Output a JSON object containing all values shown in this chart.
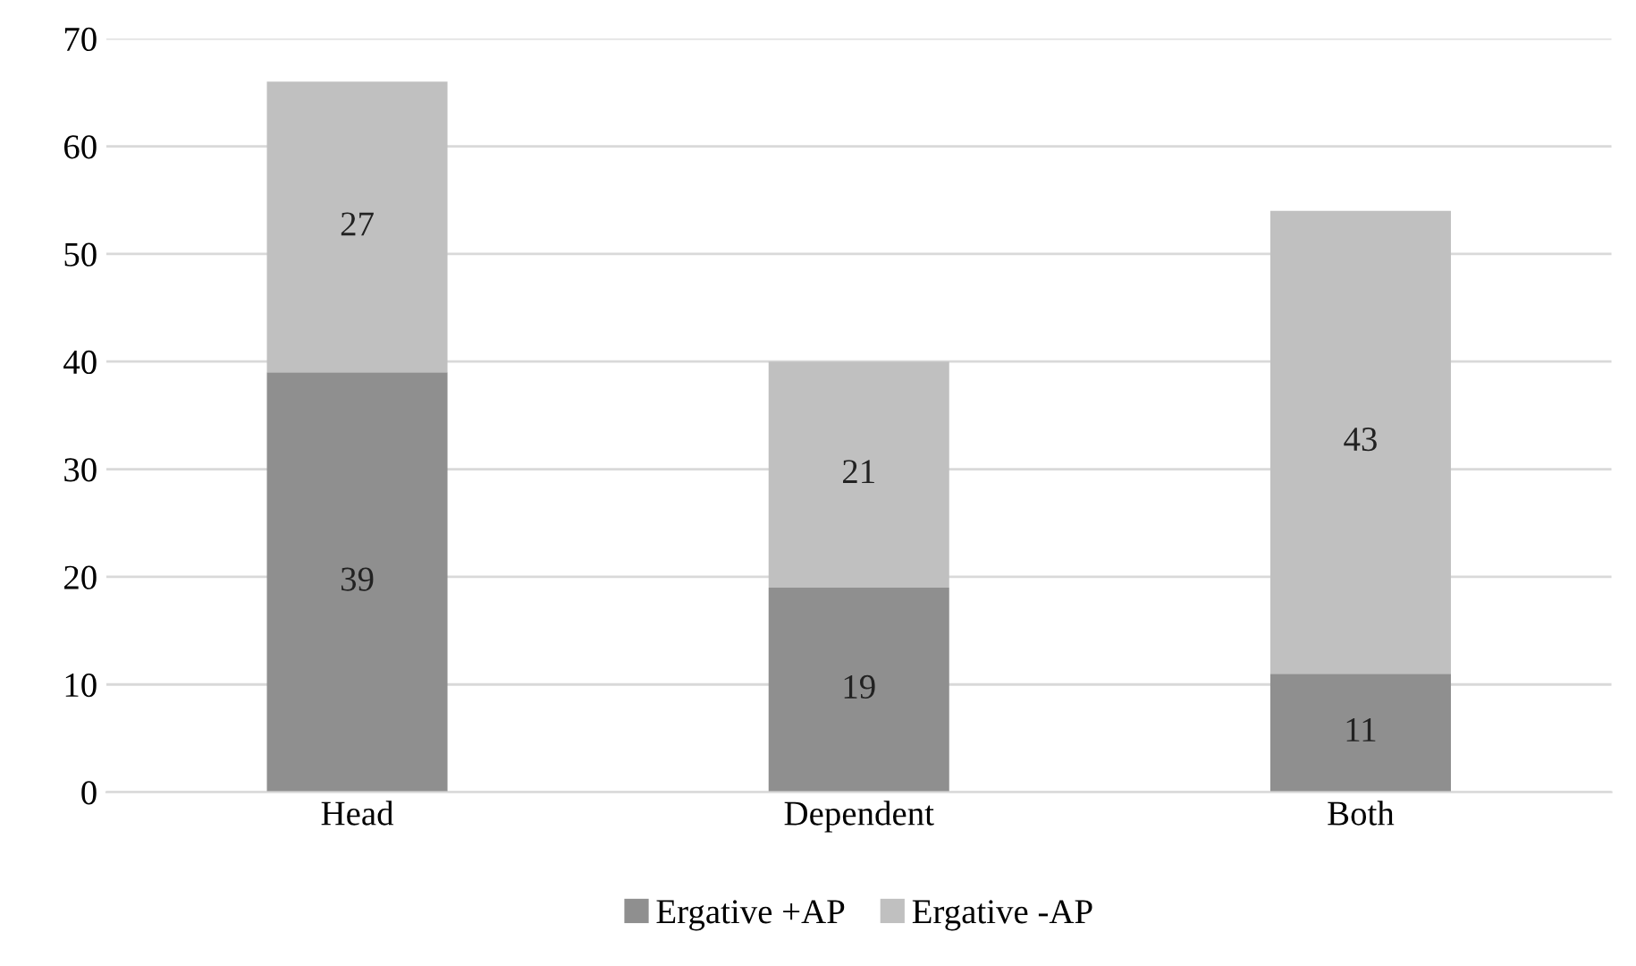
{
  "chart_data": {
    "type": "bar",
    "stacked": true,
    "categories": [
      "Head",
      "Dependent",
      "Both"
    ],
    "series": [
      {
        "name": "Ergative +AP",
        "color": "#8f8f8f",
        "values": [
          39,
          19,
          11
        ]
      },
      {
        "name": "Ergative -AP",
        "color": "#c0c0c0",
        "values": [
          27,
          21,
          43
        ]
      }
    ],
    "ylim": [
      0,
      70
    ],
    "yticks": [
      0,
      10,
      20,
      30,
      40,
      50,
      60,
      70
    ],
    "grid": "y",
    "legend": "bottom",
    "data_labels": true
  }
}
